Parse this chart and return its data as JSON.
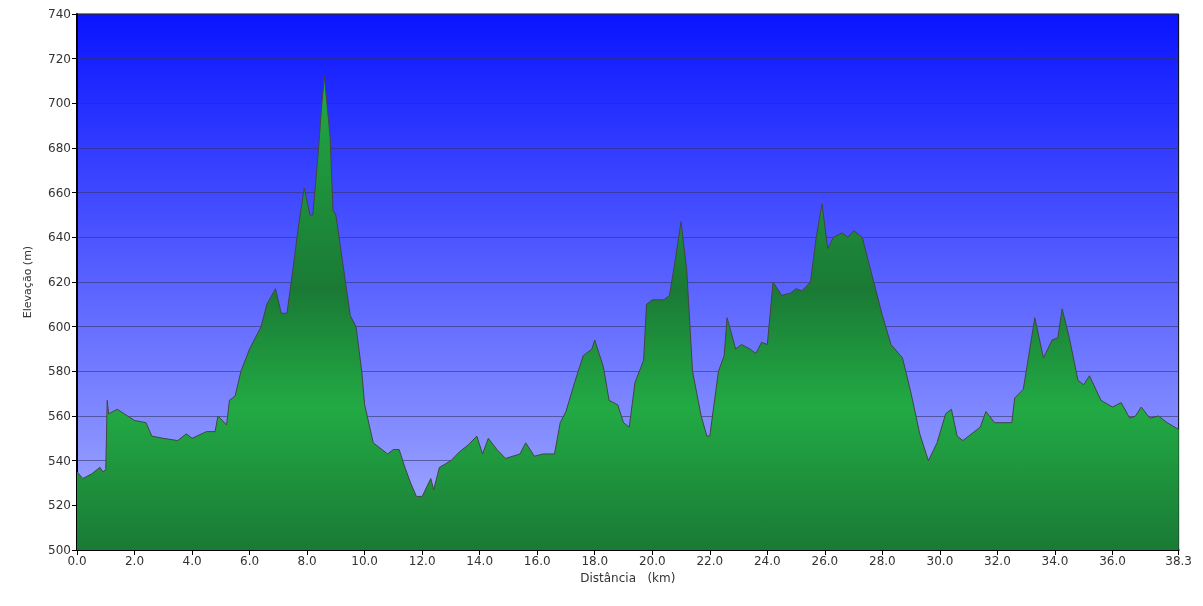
{
  "chart_data": {
    "type": "area",
    "xlabel": "Distância   (km)",
    "ylabel": "Elevação (m)",
    "x": [
      0,
      0.2,
      0.5,
      0.8,
      0.9,
      1.0,
      1.05,
      1.1,
      1.4,
      2.0,
      2.4,
      2.6,
      3.0,
      3.5,
      3.8,
      4.0,
      4.5,
      4.8,
      4.9,
      5.2,
      5.3,
      5.5,
      5.7,
      6.0,
      6.4,
      6.6,
      6.9,
      7.1,
      7.3,
      7.5,
      7.7,
      7.9,
      8.1,
      8.2,
      8.4,
      8.5,
      8.6,
      8.8,
      8.9,
      9.0,
      9.5,
      9.7,
      9.9,
      10.0,
      10.3,
      10.5,
      10.8,
      11.0,
      11.2,
      11.4,
      11.6,
      11.8,
      12.0,
      12.3,
      12.4,
      12.6,
      13.0,
      13.3,
      13.6,
      13.9,
      14.1,
      14.3,
      14.6,
      14.9,
      15.4,
      15.6,
      15.9,
      16.2,
      16.6,
      16.8,
      17.0,
      17.3,
      17.6,
      17.9,
      18.0,
      18.3,
      18.5,
      18.8,
      19.0,
      19.2,
      19.4,
      19.7,
      19.8,
      20.0,
      20.4,
      20.6,
      20.8,
      21.0,
      21.2,
      21.4,
      21.7,
      21.9,
      22.0,
      22.3,
      22.5,
      22.6,
      22.9,
      23.1,
      23.4,
      23.6,
      23.8,
      24.0,
      24.2,
      24.5,
      24.8,
      25.0,
      25.2,
      25.5,
      25.7,
      25.9,
      26.1,
      26.3,
      26.6,
      26.8,
      27.0,
      27.3,
      27.6,
      28.0,
      28.3,
      28.7,
      29.0,
      29.3,
      29.6,
      29.9,
      30.2,
      30.4,
      30.6,
      30.8,
      31.0,
      31.4,
      31.6,
      31.9,
      32.3,
      32.5,
      32.6,
      32.9,
      33.3,
      33.6,
      33.9,
      34.1,
      34.25,
      34.5,
      34.8,
      35.0,
      35.2,
      35.6,
      36.0,
      36.3,
      36.6,
      36.8,
      37.0,
      37.3,
      37.6,
      37.9,
      38.3
    ],
    "series": [
      {
        "color": "#22aa44",
        "values": [
          535,
          532,
          534,
          537,
          535,
          536,
          567,
          561,
          563,
          558,
          557,
          551,
          550,
          549,
          552,
          550,
          553,
          553,
          560,
          556,
          567,
          569,
          580,
          590,
          600,
          610,
          617,
          606,
          606,
          625,
          645,
          662,
          650,
          650,
          680,
          698,
          712,
          685,
          652,
          650,
          605,
          600,
          580,
          565,
          548,
          546,
          543,
          545,
          545,
          537,
          530,
          524,
          524,
          532,
          527,
          537,
          540,
          544,
          547,
          551,
          543,
          550,
          545,
          541,
          543,
          548,
          542,
          543,
          543,
          557,
          562,
          575,
          587,
          590,
          594,
          582,
          567,
          565,
          557,
          555,
          575,
          585,
          610,
          612,
          612,
          614,
          630,
          647,
          625,
          580,
          560,
          551,
          551,
          580,
          587,
          604,
          590,
          592,
          590,
          588,
          593,
          592,
          620,
          614,
          615,
          617,
          616,
          620,
          640,
          655,
          635,
          640,
          642,
          640,
          643,
          640,
          625,
          605,
          592,
          586,
          570,
          552,
          540,
          548,
          561,
          563,
          551,
          549,
          551,
          555,
          562,
          557,
          557,
          557,
          568,
          572,
          604,
          586,
          594,
          595,
          608,
          595,
          576,
          574,
          578,
          567,
          564,
          566,
          559,
          560,
          564,
          559,
          560,
          557,
          554
        ]
      }
    ],
    "xlim": [
      0,
      38.3
    ],
    "xticks": [
      {
        "value": 0,
        "label": "0.0"
      },
      {
        "value": 2,
        "label": "2.0"
      },
      {
        "value": 4,
        "label": "4.0"
      },
      {
        "value": 6,
        "label": "6.0"
      },
      {
        "value": 8,
        "label": "8.0"
      },
      {
        "value": 10,
        "label": "10.0"
      },
      {
        "value": 12,
        "label": "12.0"
      },
      {
        "value": 14,
        "label": "14.0"
      },
      {
        "value": 16,
        "label": "16.0"
      },
      {
        "value": 18,
        "label": "18.0"
      },
      {
        "value": 20,
        "label": "20.0"
      },
      {
        "value": 22,
        "label": "22.0"
      },
      {
        "value": 24,
        "label": "24.0"
      },
      {
        "value": 26,
        "label": "26.0"
      },
      {
        "value": 28,
        "label": "28.0"
      },
      {
        "value": 30,
        "label": "30.0"
      },
      {
        "value": 32,
        "label": "32.0"
      },
      {
        "value": 34,
        "label": "34.0"
      },
      {
        "value": 36,
        "label": "36.0"
      },
      38.3
    ],
    "ylim": [
      500,
      740
    ],
    "yticks": [
      500,
      520,
      540,
      560,
      580,
      600,
      620,
      640,
      660,
      680,
      700,
      720,
      740
    ],
    "grid": "y"
  }
}
